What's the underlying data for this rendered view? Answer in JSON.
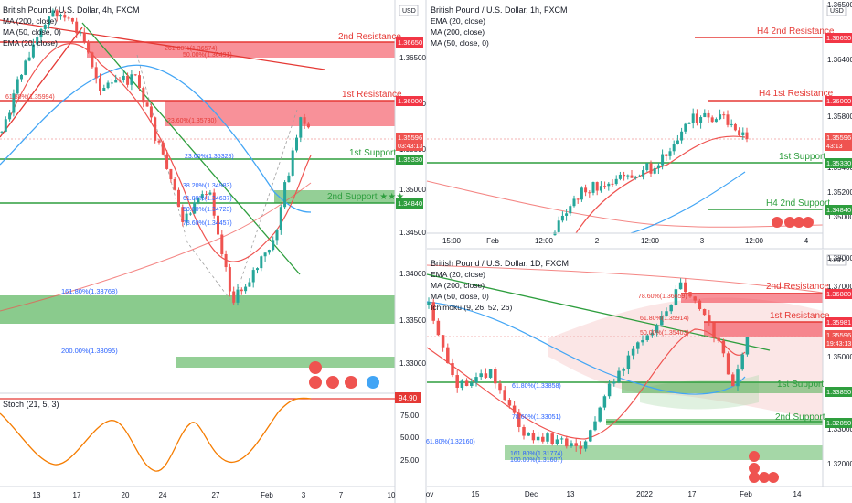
{
  "colors": {
    "candle_up": "#26a69a",
    "candle_down": "#ef5350",
    "resistance_zone": "#f23645",
    "support_zone": "#4caf50",
    "ema20": "#f44336",
    "ma200": "#ef9a9a",
    "ma50": "#42a5f5",
    "stoch": "#f57c00",
    "trendline_green": "#2e9e3e",
    "trendline_red": "#e53935"
  },
  "panels": {
    "h4": {
      "title": "British Pound / U.S. Dollar, 4h, FXCM",
      "indicators": [
        "MA (200, close)",
        "MA (50, close, 0)",
        "EMA (20, close)"
      ],
      "currency": "USD",
      "price_labels": [
        "1.36500",
        "1.36000",
        "1.35500",
        "1.35000",
        "1.34500",
        "1.34000",
        "1.33500",
        "1.33000"
      ],
      "level_tags": [
        {
          "value": "1.36650",
          "label": "2nd Resistance"
        },
        {
          "value": "1.36000",
          "label": "1st Resistance"
        },
        {
          "value": "1.35596",
          "sub": "03:43:13",
          "label": ""
        },
        {
          "value": "1.35330",
          "label": "1st Support"
        },
        {
          "value": "1.34840",
          "label": "2nd Support ★★★"
        }
      ],
      "fib_labels": [
        "261.80%(1.36574)",
        "50.00%(1.36491)",
        "61.80%(1.35994)",
        "23.60%(1.35730)",
        "23.60%(1.35328)",
        "38.20%(1.34983)",
        "61.80%(1.34637)",
        "50.00%(1.34723)",
        "78.60%(1.34457)",
        "161.80%(1.33768)",
        "200.00%(1.33095)"
      ],
      "x_labels": [
        "13",
        "17",
        "20",
        "24",
        "27",
        "Feb",
        "3",
        "7",
        "10"
      ],
      "stoch": {
        "title": "Stoch (21, 5, 3)",
        "tag": "94.90",
        "levels": [
          "75.00",
          "50.00",
          "25.00"
        ]
      }
    },
    "h1": {
      "title": "British Pound / U.S. Dollar, 1h, FXCM",
      "indicators": [
        "EMA (20, close)",
        "MA (200, close)",
        "MA (50, close, 0)"
      ],
      "currency": "USD",
      "price_labels": [
        "1.36500",
        "1.36400",
        "1.35800",
        "1.35600",
        "1.35400",
        "1.35200",
        "1.35000"
      ],
      "level_tags": [
        {
          "value": "1.36650",
          "label": "H4 2nd Resistance"
        },
        {
          "value": "1.36000",
          "label": "H4 1st Resistance"
        },
        {
          "value": "1.35596",
          "sub": "43:13",
          "label": ""
        },
        {
          "value": "1.35330",
          "label": "1st Support"
        },
        {
          "value": "1.34840",
          "label": "H4 2nd Support"
        }
      ],
      "x_labels": [
        "15:00",
        "Feb",
        "12:00",
        "2",
        "12:00",
        "3",
        "12:00",
        "4"
      ]
    },
    "d1": {
      "title": "British Pound / U.S. Dollar, 1D, FXCM",
      "indicators": [
        "EMA (20, close)",
        "MA (200, close)",
        "MA (50, close, 0)",
        "Ichimoku (9, 26, 52, 26)"
      ],
      "currency": "USD",
      "price_labels": [
        "1.38000",
        "1.37000",
        "1.36000",
        "1.35000",
        "1.34000",
        "1.33000",
        "1.32000"
      ],
      "level_tags": [
        {
          "value": "1.36880",
          "label": "2nd Resistance"
        },
        {
          "value": "1.35981",
          "label": "1st Resistance"
        },
        {
          "value": "1.35596",
          "sub": "19:43:13",
          "label": ""
        },
        {
          "value": "1.33850",
          "label": "1st Support"
        },
        {
          "value": "1.32850",
          "label": "2nd Support"
        }
      ],
      "fib_labels": [
        "78.60%(1.36659)",
        "61.80%(1.35914)",
        "50.00%(1.35403)",
        "61.80%(1.33858)",
        "78.60%(1.33051)",
        "61.80%(1.32160)",
        "161.80%(1.31774)",
        "100.00%(1.31607)"
      ],
      "x_labels": [
        "ov",
        "15",
        "Dec",
        "13",
        "2022",
        "17",
        "Feb",
        "14"
      ]
    }
  }
}
